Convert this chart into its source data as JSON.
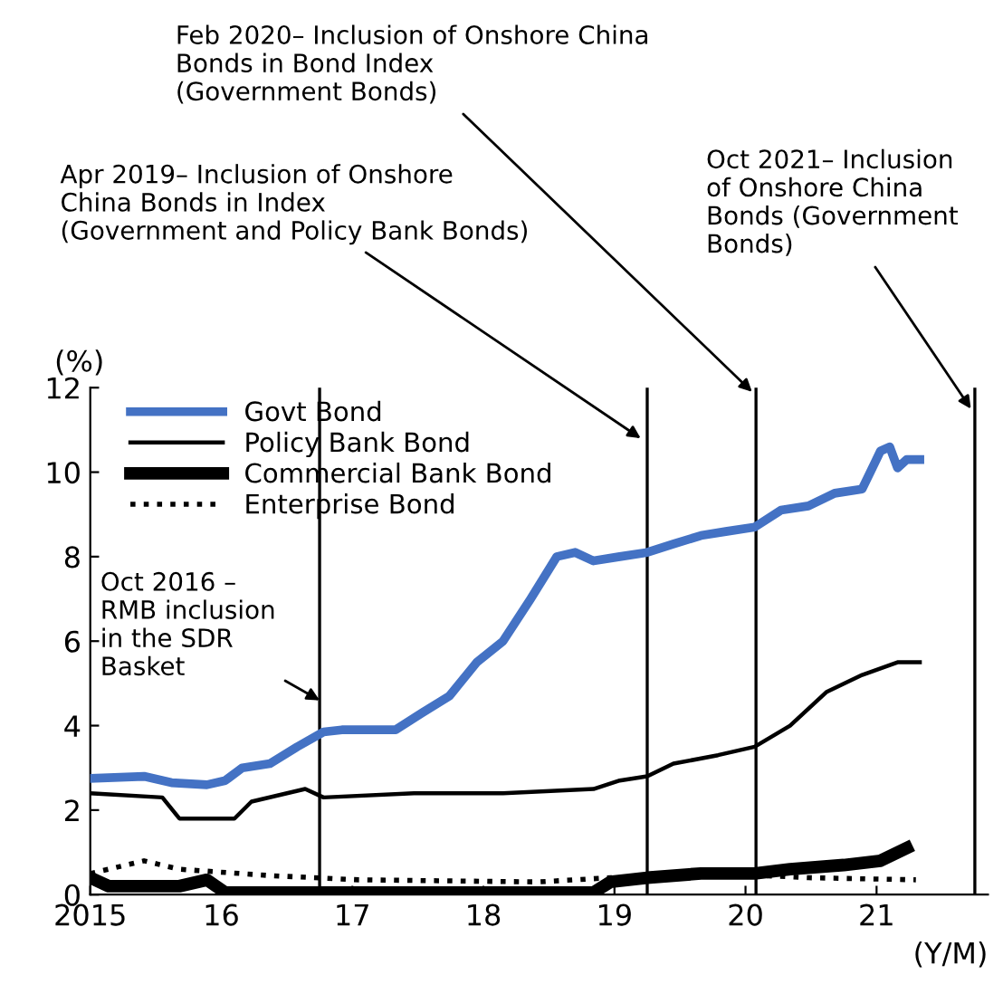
{
  "chart_data": {
    "type": "line",
    "ylabel": "(%)",
    "xlabel": "(Y/M)",
    "xlim": [
      2015,
      2021.85
    ],
    "xticks": [
      {
        "value": 2015,
        "label": "2015"
      },
      {
        "value": 2016,
        "label": "16"
      },
      {
        "value": 2017,
        "label": "17"
      },
      {
        "value": 2018,
        "label": "18"
      },
      {
        "value": 2019,
        "label": "19"
      },
      {
        "value": 2020,
        "label": "20"
      },
      {
        "value": 2021,
        "label": "21"
      }
    ],
    "ylim": [
      0,
      12
    ],
    "yticks": [
      0,
      2,
      4,
      6,
      8,
      10,
      12
    ],
    "grid": false,
    "legend": "top left",
    "series": [
      {
        "name": "Govt Bond",
        "color": "#4472c4",
        "x": [
          2015.0,
          2015.41,
          2015.62,
          2015.89,
          2016.03,
          2016.16,
          2016.37,
          2016.58,
          2016.78,
          2016.92,
          2017.33,
          2017.53,
          2017.74,
          2017.95,
          2018.15,
          2018.36,
          2018.56,
          2018.7,
          2018.84,
          2019.04,
          2019.25,
          2019.45,
          2019.66,
          2019.86,
          2020.07,
          2020.27,
          2020.48,
          2020.68,
          2020.89,
          2021.03,
          2021.1,
          2021.16,
          2021.23,
          2021.33
        ],
        "values": [
          2.75,
          2.8,
          2.65,
          2.6,
          2.7,
          3.0,
          3.1,
          3.5,
          3.85,
          3.9,
          3.9,
          4.3,
          4.7,
          5.5,
          6.0,
          7.0,
          8.0,
          8.1,
          7.9,
          8.0,
          8.1,
          8.3,
          8.5,
          8.6,
          8.7,
          9.1,
          9.2,
          9.5,
          9.6,
          10.5,
          10.6,
          10.1,
          10.3,
          10.3
        ]
      },
      {
        "name": "Policy Bank Bond",
        "color": "#000000",
        "x": [
          2015.0,
          2015.55,
          2015.68,
          2016.1,
          2016.23,
          2016.64,
          2016.78,
          2017.47,
          2018.15,
          2018.84,
          2019.04,
          2019.25,
          2019.45,
          2019.79,
          2020.07,
          2020.34,
          2020.62,
          2020.89,
          2021.16,
          2021.33
        ],
        "values": [
          2.4,
          2.3,
          1.8,
          1.8,
          2.2,
          2.5,
          2.3,
          2.4,
          2.4,
          2.5,
          2.7,
          2.8,
          3.1,
          3.3,
          3.5,
          4.0,
          4.8,
          5.2,
          5.5,
          5.5
        ]
      },
      {
        "name": "Commercial Bank Bond",
        "color": "#000000",
        "x": [
          2015.0,
          2015.14,
          2015.68,
          2015.89,
          2016.03,
          2018.42,
          2018.84,
          2018.97,
          2019.25,
          2019.66,
          2020.07,
          2020.34,
          2020.75,
          2021.03,
          2021.23
        ],
        "values": [
          0.4,
          0.2,
          0.2,
          0.35,
          0.05,
          0.05,
          0.05,
          0.3,
          0.4,
          0.5,
          0.5,
          0.6,
          0.7,
          0.8,
          1.1
        ]
      },
      {
        "name": "Enterprise Bond",
        "color": "#000000",
        "line_style": "dotted",
        "x": [
          2015.0,
          2015.41,
          2015.68,
          2016.37,
          2017.05,
          2018.42,
          2018.97,
          2019.79,
          2020.48,
          2021.3
        ],
        "values": [
          0.5,
          0.8,
          0.6,
          0.45,
          0.35,
          0.3,
          0.4,
          0.5,
          0.4,
          0.35
        ]
      }
    ],
    "ref_lines": [
      {
        "axis": "x",
        "value": 2016.75,
        "color": "#000000"
      },
      {
        "axis": "x",
        "value": 2019.25,
        "color": "#000000"
      },
      {
        "axis": "x",
        "value": 2020.08,
        "color": "#000000"
      },
      {
        "axis": "x",
        "value": 2021.75,
        "color": "#000000"
      }
    ],
    "annotations": [
      {
        "text": "Oct 2016 –\nRMB inclusion\nin the SDR\nBasket",
        "x": 2016.75,
        "y": 4.6
      },
      {
        "text": "Apr 2019– Inclusion of Onshore\nChina Bonds in Index\n(Government and Policy Bank Bonds)",
        "x": 2019.2,
        "y": 10.8
      },
      {
        "text": "Feb 2020– Inclusion of Onshore China\nBonds in Bond Index\n(Government Bonds)",
        "x": 2020.05,
        "y": 11.9
      },
      {
        "text": "Oct 2021– Inclusion\nof Onshore China\nBonds (Government\nBonds)",
        "x": 2021.72,
        "y": 11.5
      }
    ]
  }
}
